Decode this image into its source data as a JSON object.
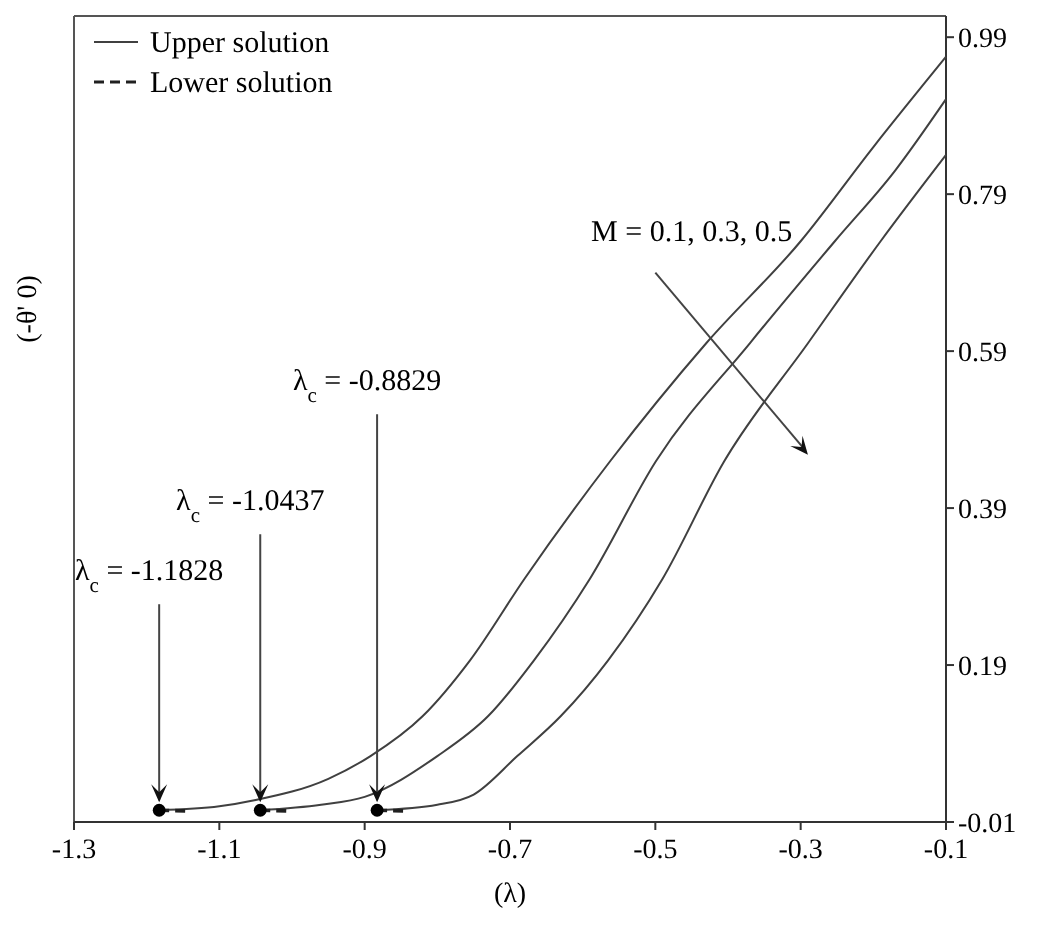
{
  "chart_data": {
    "type": "line",
    "xlabel": "(λ)",
    "ylabel": "(-θ' 0)",
    "xlim": [
      -1.3,
      -0.1
    ],
    "xticks": [
      -1.3,
      -1.1,
      -0.9,
      -0.7,
      -0.5,
      -0.3,
      -0.1
    ],
    "ylim": [
      -0.01,
      1.017
    ],
    "yticks": [
      -0.01,
      0.19,
      0.39,
      0.59,
      0.79,
      0.99
    ],
    "grid": false,
    "legend": "top left",
    "series": [
      {
        "name": "Upper solution",
        "color": "#404040",
        "line_style": "solid",
        "x": [
          -1.1828,
          -1.1,
          -1.05,
          -0.95,
          -0.892,
          -0.82,
          -0.755,
          -0.68,
          -0.562,
          -0.43,
          -0.3,
          -0.2,
          -0.1
        ],
        "values": [
          0.005,
          0.01,
          0.018,
          0.045,
          0.074,
          0.125,
          0.196,
          0.3,
          0.45,
          0.6,
          0.73,
          0.85,
          0.965
        ]
      },
      {
        "color": "#404040",
        "line_style": "solid",
        "x": [
          -1.0437,
          -0.96,
          -0.9,
          -0.8,
          -0.73,
          -0.667,
          -0.59,
          -0.499,
          -0.37,
          -0.253,
          -0.17,
          -0.1
        ],
        "values": [
          0.005,
          0.012,
          0.022,
          0.074,
          0.125,
          0.196,
          0.3,
          0.45,
          0.6,
          0.73,
          0.82,
          0.911
        ]
      },
      {
        "color": "#404040",
        "line_style": "solid",
        "x": [
          -0.8829,
          -0.8,
          -0.75,
          -0.69,
          -0.63,
          -0.565,
          -0.49,
          -0.405,
          -0.29,
          -0.19,
          -0.1
        ],
        "values": [
          0.005,
          0.012,
          0.025,
          0.074,
          0.125,
          0.196,
          0.3,
          0.45,
          0.6,
          0.73,
          0.84
        ]
      },
      {
        "name": "Lower solution",
        "color": "#202020",
        "line_style": "dashed",
        "x": [
          -1.1828,
          -1.14
        ],
        "values": [
          0.005,
          0.004
        ]
      },
      {
        "color": "#202020",
        "line_style": "dashed",
        "x": [
          -1.0437,
          -1.0
        ],
        "values": [
          0.005,
          0.004
        ]
      },
      {
        "color": "#202020",
        "line_style": "dashed",
        "x": [
          -0.8829,
          -0.84
        ],
        "values": [
          0.005,
          0.004
        ]
      },
      {
        "type": "scatter",
        "marker": "circle",
        "color": "#000000",
        "x": [
          -1.1828,
          -1.0437,
          -0.8829
        ],
        "values": [
          0.005,
          0.005,
          0.005
        ]
      }
    ],
    "annotations": [
      {
        "text": "λ$_{c}$ = -1.1828",
        "x": -1.1828,
        "y": 0.005
      },
      {
        "text": "λ$_{c}$ = -1.0437",
        "x": -1.0437,
        "y": 0.005
      },
      {
        "text": "λ$_{c}$ = -0.8829",
        "x": -0.8829,
        "y": 0.005
      },
      "M = 0.1, 0.3, 0.5"
    ]
  }
}
